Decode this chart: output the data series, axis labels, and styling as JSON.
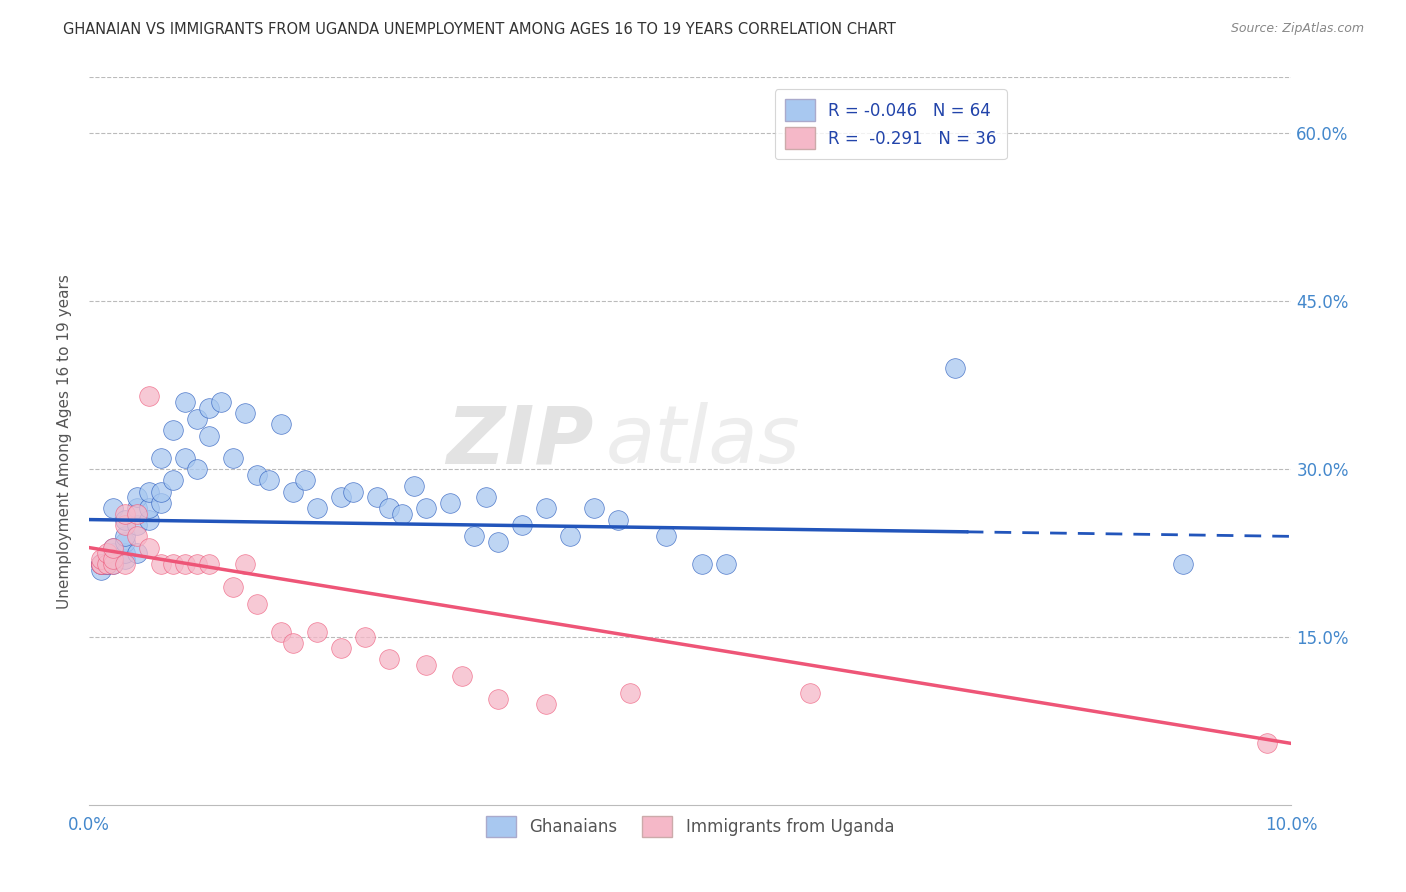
{
  "title": "GHANAIAN VS IMMIGRANTS FROM UGANDA UNEMPLOYMENT AMONG AGES 16 TO 19 YEARS CORRELATION CHART",
  "source": "Source: ZipAtlas.com",
  "ylabel": "Unemployment Among Ages 16 to 19 years",
  "xlim": [
    0.0,
    0.1
  ],
  "ylim": [
    0.0,
    0.65
  ],
  "legend_label1": "R = -0.046   N = 64",
  "legend_label2": "R =  -0.291   N = 36",
  "legend_bottom_label1": "Ghanaians",
  "legend_bottom_label2": "Immigrants from Uganda",
  "color_blue": "#A8C8F0",
  "color_pink": "#F5B8C8",
  "color_line_blue": "#2255BB",
  "color_line_pink": "#EE5577",
  "watermark_zip": "ZIP",
  "watermark_atlas": "atlas",
  "ghanaians_x": [
    0.001,
    0.001,
    0.001,
    0.001,
    0.0015,
    0.0015,
    0.002,
    0.002,
    0.002,
    0.002,
    0.002,
    0.003,
    0.003,
    0.003,
    0.003,
    0.003,
    0.004,
    0.004,
    0.004,
    0.004,
    0.005,
    0.005,
    0.005,
    0.006,
    0.006,
    0.006,
    0.007,
    0.007,
    0.008,
    0.008,
    0.009,
    0.009,
    0.01,
    0.01,
    0.011,
    0.012,
    0.013,
    0.014,
    0.015,
    0.016,
    0.017,
    0.018,
    0.019,
    0.021,
    0.022,
    0.024,
    0.025,
    0.026,
    0.027,
    0.028,
    0.03,
    0.032,
    0.033,
    0.034,
    0.036,
    0.038,
    0.04,
    0.042,
    0.044,
    0.048,
    0.051,
    0.053,
    0.072,
    0.091
  ],
  "ghanaians_y": [
    0.215,
    0.215,
    0.21,
    0.215,
    0.215,
    0.215,
    0.215,
    0.22,
    0.225,
    0.23,
    0.265,
    0.22,
    0.225,
    0.235,
    0.24,
    0.255,
    0.225,
    0.25,
    0.265,
    0.275,
    0.255,
    0.265,
    0.28,
    0.27,
    0.28,
    0.31,
    0.29,
    0.335,
    0.31,
    0.36,
    0.3,
    0.345,
    0.33,
    0.355,
    0.36,
    0.31,
    0.35,
    0.295,
    0.29,
    0.34,
    0.28,
    0.29,
    0.265,
    0.275,
    0.28,
    0.275,
    0.265,
    0.26,
    0.285,
    0.265,
    0.27,
    0.24,
    0.275,
    0.235,
    0.25,
    0.265,
    0.24,
    0.265,
    0.255,
    0.24,
    0.215,
    0.215,
    0.39,
    0.215
  ],
  "uganda_x": [
    0.001,
    0.001,
    0.001,
    0.0015,
    0.0015,
    0.002,
    0.002,
    0.002,
    0.003,
    0.003,
    0.003,
    0.004,
    0.004,
    0.005,
    0.005,
    0.006,
    0.007,
    0.008,
    0.009,
    0.01,
    0.012,
    0.013,
    0.014,
    0.016,
    0.017,
    0.019,
    0.021,
    0.023,
    0.025,
    0.028,
    0.031,
    0.034,
    0.038,
    0.045,
    0.06,
    0.098
  ],
  "uganda_y": [
    0.215,
    0.215,
    0.22,
    0.215,
    0.225,
    0.215,
    0.22,
    0.23,
    0.215,
    0.25,
    0.26,
    0.24,
    0.26,
    0.23,
    0.365,
    0.215,
    0.215,
    0.215,
    0.215,
    0.215,
    0.195,
    0.215,
    0.18,
    0.155,
    0.145,
    0.155,
    0.14,
    0.15,
    0.13,
    0.125,
    0.115,
    0.095,
    0.09,
    0.1,
    0.1,
    0.055
  ],
  "trendline_blue_x0": 0.0,
  "trendline_blue_y0": 0.255,
  "trendline_blue_x1": 0.1,
  "trendline_blue_y1": 0.24,
  "trendline_pink_x0": 0.0,
  "trendline_pink_y0": 0.23,
  "trendline_pink_x1": 0.1,
  "trendline_pink_y1": 0.055
}
